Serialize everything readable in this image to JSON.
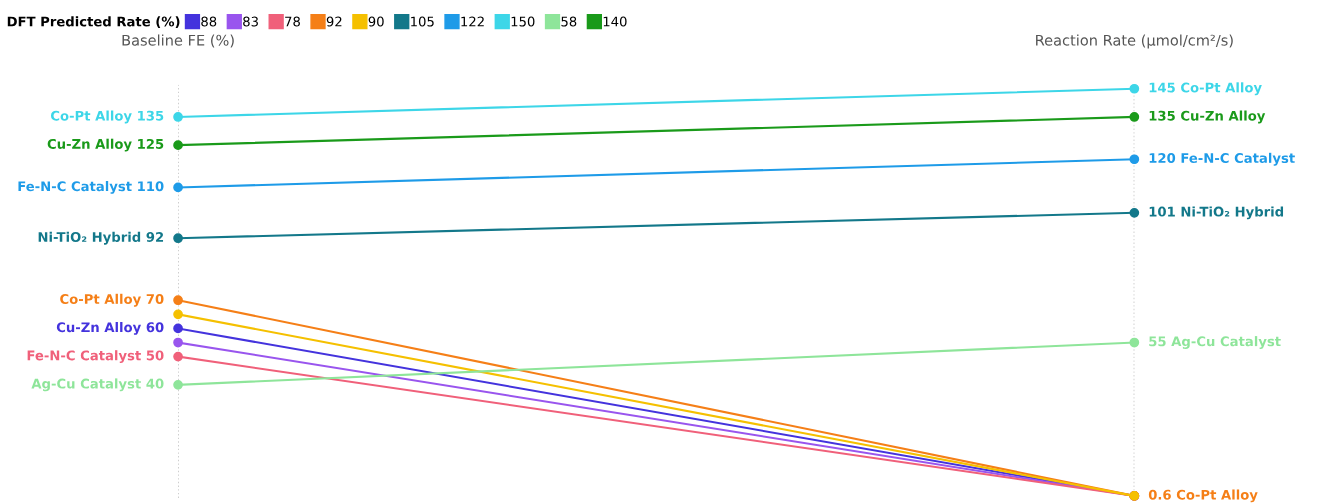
{
  "chart_data": {
    "type": "line",
    "categories": [
      "Baseline FE (%)",
      "Reaction Rate (μmol/cm²/s)"
    ],
    "legend_title": "DFT Predicted Rate (%)",
    "series": [
      {
        "name": "88",
        "color": "#4433dd",
        "values": [
          60,
          0.6
        ],
        "value_labels": [
          "Cu-Zn Alloy 60",
          null
        ]
      },
      {
        "name": "83",
        "color": "#9955ee",
        "values": [
          55,
          0.6
        ],
        "value_labels": [
          null,
          null
        ]
      },
      {
        "name": "78",
        "color": "#f0607a",
        "values": [
          50,
          0.6
        ],
        "value_labels": [
          "Fe-N-C Catalyst 50",
          null
        ]
      },
      {
        "name": "92",
        "color": "#f57f17",
        "values": [
          70,
          0.6
        ],
        "value_labels": [
          "Co-Pt Alloy 70",
          "0.6 Co-Pt Alloy"
        ]
      },
      {
        "name": "90",
        "color": "#f5c000",
        "values": [
          65,
          0.6
        ],
        "value_labels": [
          null,
          null
        ]
      },
      {
        "name": "105",
        "color": "#13788a",
        "values": [
          92,
          101
        ],
        "value_labels": [
          "Ni-TiO₂ Hybrid 92",
          "101 Ni-TiO₂ Hybrid"
        ]
      },
      {
        "name": "122",
        "color": "#1e9be8",
        "values": [
          110,
          120
        ],
        "value_labels": [
          "Fe-N-C Catalyst 110",
          "120 Fe-N-C Catalyst"
        ]
      },
      {
        "name": "150",
        "color": "#3dd6e8",
        "values": [
          135,
          145
        ],
        "value_labels": [
          "Co-Pt Alloy 135",
          "145 Co-Pt Alloy"
        ]
      },
      {
        "name": "58",
        "color": "#8ee59a",
        "values": [
          40,
          55
        ],
        "value_labels": [
          "Ag-Cu Catalyst 40",
          "55 Ag-Cu Catalyst"
        ]
      },
      {
        "name": "140",
        "color": "#1a9a1a",
        "values": [
          125,
          135
        ],
        "value_labels": [
          "Cu-Zn Alloy 125",
          "135 Cu-Zn Alloy"
        ]
      }
    ],
    "grid": "x",
    "legend": "top left",
    "marker": "circle",
    "line_style": "solid"
  }
}
